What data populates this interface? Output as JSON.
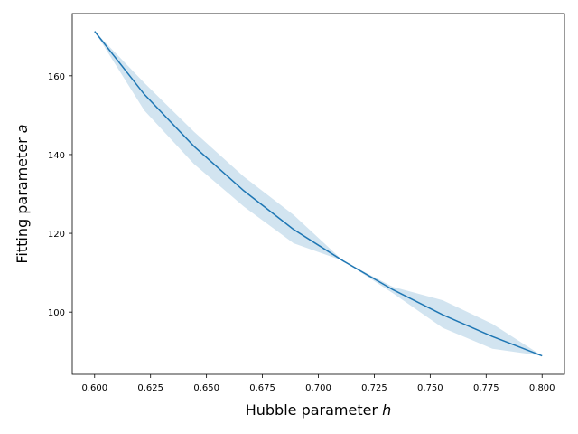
{
  "chart_data": {
    "type": "line",
    "xlabel": "Hubble parameter",
    "xlabel_symbol": "h",
    "ylabel": "Fitting parameter",
    "ylabel_symbol": "a",
    "xlim": [
      0.59,
      0.81
    ],
    "ylim": [
      84.2,
      175.8
    ],
    "x_ticks": [
      0.6,
      0.625,
      0.65,
      0.675,
      0.7,
      0.725,
      0.75,
      0.775,
      0.8
    ],
    "x_tick_labels": [
      "0.600",
      "0.625",
      "0.650",
      "0.675",
      "0.700",
      "0.725",
      "0.750",
      "0.775",
      "0.800"
    ],
    "y_ticks": [
      100,
      120,
      140,
      160
    ],
    "y_tick_labels": [
      "100",
      "120",
      "140",
      "160"
    ],
    "grid": false,
    "colors": {
      "line": "#1f77b4",
      "band": "#1f77b4"
    },
    "series": [
      {
        "x": [
          0.6,
          0.6222,
          0.6444,
          0.6667,
          0.6889,
          0.7111,
          0.7333,
          0.7556,
          0.7778,
          0.8
        ],
        "values": [
          171.3,
          155.3,
          142.1,
          130.8,
          121.0,
          113.0,
          105.7,
          99.3,
          93.8,
          88.9
        ],
        "lower": [
          171.3,
          151.2,
          137.6,
          126.8,
          117.5,
          113.0,
          104.8,
          96.0,
          90.7,
          88.9
        ],
        "upper": [
          171.3,
          158.2,
          145.8,
          134.4,
          124.7,
          113.0,
          106.4,
          103.0,
          97.0,
          88.9
        ]
      }
    ]
  }
}
